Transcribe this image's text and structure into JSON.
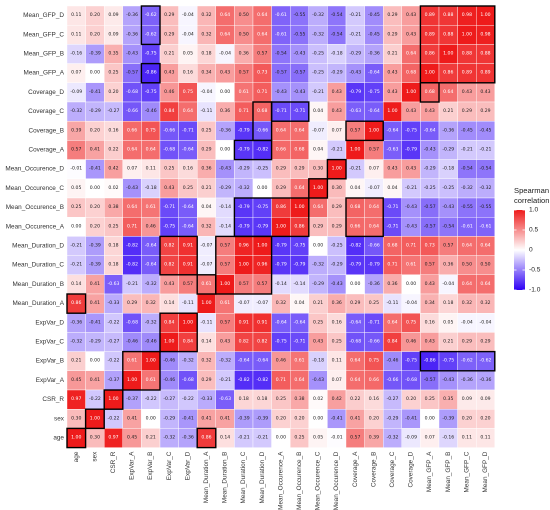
{
  "chart_data": {
    "type": "heatmap",
    "title": "",
    "xlabel": "",
    "ylabel": "",
    "variables": [
      "age",
      "sex",
      "CSR_R",
      "ExpVar_A",
      "ExpVar_B",
      "ExpVar_C",
      "ExpVar_D",
      "Mean_Duration_A",
      "Mean_Duration_B",
      "Mean_Duration_C",
      "Mean_Duration_D",
      "Mean_Occurence_A",
      "Mean_Occurence_B",
      "Mean_Occurence_C",
      "Mean_Occurence_D",
      "Coverage_A",
      "Coverage_B",
      "Coverage_C",
      "Coverage_D",
      "Mean_GFP_A",
      "Mean_GFP_B",
      "Mean_GFP_C",
      "Mean_GFP_D"
    ],
    "rows_top_to_bottom": [
      "Mean_GFP_D",
      "Mean_GFP_C",
      "Mean_GFP_B",
      "Mean_GFP_A",
      "Coverage_D",
      "Coverage_C",
      "Coverage_B",
      "Coverage_A",
      "Mean_Occurence_D",
      "Mean_Occurence_C",
      "Mean_Occurence_B",
      "Mean_Occurence_A",
      "Mean_Duration_D",
      "Mean_Duration_C",
      "Mean_Duration_B",
      "Mean_Duration_A",
      "ExpVar_D",
      "ExpVar_C",
      "ExpVar_B",
      "ExpVar_A",
      "CSR_R",
      "sex",
      "age"
    ],
    "columns_left_to_right": [
      "age",
      "sex",
      "CSR_R",
      "ExpVar_A",
      "ExpVar_B",
      "ExpVar_C",
      "ExpVar_D",
      "Mean_Duration_A",
      "Mean_Duration_B",
      "Mean_Duration_C",
      "Mean_Duration_D",
      "Mean_Occurence_A",
      "Mean_Occurence_B",
      "Mean_Occurence_C",
      "Mean_Occurence_D",
      "Coverage_A",
      "Coverage_B",
      "Coverage_C",
      "Coverage_D",
      "Mean_GFP_A",
      "Mean_GFP_B",
      "Mean_GFP_C",
      "Mean_GFP_D"
    ],
    "values": [
      [
        0.11,
        0.2,
        0.09,
        -0.36,
        -0.62,
        0.29,
        -0.04,
        0.32,
        0.64,
        0.5,
        0.64,
        -0.61,
        -0.55,
        -0.32,
        -0.54,
        -0.21,
        -0.45,
        0.29,
        0.43,
        0.89,
        0.88,
        0.98,
        1.0
      ],
      [
        0.11,
        0.2,
        0.09,
        -0.36,
        -0.62,
        0.29,
        -0.04,
        0.32,
        0.64,
        0.5,
        0.64,
        -0.61,
        -0.55,
        -0.32,
        -0.54,
        -0.21,
        -0.45,
        0.29,
        0.43,
        0.89,
        0.88,
        1.0,
        0.98
      ],
      [
        -0.16,
        -0.39,
        0.35,
        -0.43,
        -0.75,
        0.21,
        0.05,
        0.18,
        -0.04,
        0.36,
        0.57,
        -0.54,
        -0.43,
        -0.25,
        -0.18,
        -0.29,
        -0.36,
        0.21,
        0.64,
        0.86,
        1.0,
        0.88,
        0.88
      ],
      [
        0.07,
        0.0,
        0.25,
        -0.57,
        -0.86,
        0.43,
        0.16,
        0.34,
        0.43,
        0.57,
        0.73,
        -0.57,
        -0.57,
        -0.25,
        -0.29,
        -0.43,
        -0.64,
        0.43,
        0.68,
        1.0,
        0.86,
        0.89,
        0.89
      ],
      [
        -0.09,
        -0.41,
        0.2,
        -0.68,
        -0.75,
        0.46,
        0.75,
        -0.04,
        0.0,
        0.61,
        0.71,
        -0.43,
        -0.43,
        -0.21,
        0.43,
        -0.79,
        -0.75,
        0.43,
        1.0,
        0.68,
        0.64,
        0.43,
        0.43
      ],
      [
        -0.32,
        -0.29,
        -0.27,
        -0.66,
        -0.46,
        0.84,
        0.64,
        -0.11,
        0.36,
        0.71,
        0.68,
        -0.71,
        -0.71,
        0.04,
        0.43,
        -0.63,
        -0.64,
        1.0,
        0.43,
        0.43,
        0.21,
        0.29,
        0.29
      ],
      [
        0.39,
        0.2,
        0.16,
        0.66,
        0.75,
        -0.66,
        -0.71,
        0.25,
        -0.36,
        -0.79,
        -0.66,
        0.64,
        0.64,
        -0.07,
        0.07,
        0.57,
        1.0,
        -0.64,
        -0.75,
        -0.64,
        -0.36,
        -0.45,
        -0.45
      ],
      [
        0.57,
        0.41,
        0.22,
        0.64,
        0.64,
        -0.68,
        -0.64,
        0.29,
        0.0,
        -0.79,
        -0.82,
        0.66,
        0.68,
        0.04,
        -0.21,
        1.0,
        0.57,
        -0.63,
        -0.79,
        -0.43,
        -0.29,
        -0.21,
        -0.21
      ],
      [
        -0.01,
        -0.41,
        0.42,
        0.07,
        0.11,
        0.25,
        0.16,
        0.36,
        -0.43,
        -0.29,
        -0.25,
        0.29,
        0.29,
        0.3,
        1.0,
        -0.21,
        0.07,
        0.43,
        0.43,
        -0.29,
        -0.18,
        -0.54,
        -0.54
      ],
      [
        0.05,
        0.0,
        0.02,
        -0.43,
        -0.18,
        0.43,
        0.25,
        0.21,
        -0.29,
        -0.32,
        0.0,
        0.29,
        0.64,
        1.0,
        0.3,
        0.04,
        -0.07,
        0.04,
        -0.21,
        -0.25,
        -0.25,
        -0.32,
        -0.32
      ],
      [
        0.25,
        0.2,
        0.38,
        0.64,
        0.61,
        -0.71,
        -0.64,
        0.04,
        -0.14,
        -0.79,
        -0.75,
        0.86,
        1.0,
        0.64,
        0.29,
        0.68,
        0.64,
        -0.71,
        -0.43,
        -0.57,
        -0.43,
        -0.55,
        -0.55
      ],
      [
        0.0,
        0.2,
        0.25,
        0.71,
        0.46,
        -0.75,
        -0.64,
        0.32,
        -0.14,
        -0.79,
        -0.79,
        1.0,
        0.86,
        0.29,
        0.29,
        0.66,
        0.64,
        -0.71,
        -0.43,
        -0.57,
        -0.54,
        -0.61,
        -0.61
      ],
      [
        -0.21,
        -0.39,
        0.18,
        -0.82,
        -0.64,
        0.82,
        0.91,
        -0.07,
        0.57,
        0.96,
        1.0,
        -0.79,
        -0.75,
        0.0,
        -0.25,
        -0.82,
        -0.66,
        0.68,
        0.71,
        0.73,
        0.57,
        0.64,
        0.64
      ],
      [
        -0.21,
        -0.39,
        0.18,
        -0.82,
        -0.64,
        0.82,
        0.91,
        -0.07,
        0.57,
        1.0,
        0.96,
        -0.79,
        -0.79,
        -0.32,
        -0.29,
        -0.79,
        -0.79,
        0.71,
        0.61,
        0.57,
        0.36,
        0.5,
        0.5
      ],
      [
        0.14,
        0.41,
        -0.63,
        -0.21,
        -0.32,
        0.43,
        0.57,
        0.61,
        1.0,
        0.57,
        0.57,
        -0.14,
        -0.14,
        -0.29,
        -0.43,
        0.0,
        -0.36,
        0.36,
        0.0,
        0.43,
        -0.04,
        0.64,
        0.64
      ],
      [
        0.86,
        0.41,
        -0.33,
        0.29,
        0.32,
        0.14,
        -0.11,
        1.0,
        0.61,
        -0.07,
        -0.07,
        0.32,
        0.04,
        0.21,
        0.36,
        0.29,
        0.25,
        -0.11,
        -0.04,
        0.34,
        0.18,
        0.32,
        0.32
      ],
      [
        -0.36,
        -0.41,
        -0.22,
        -0.68,
        -0.32,
        0.84,
        1.0,
        -0.11,
        0.57,
        0.91,
        0.91,
        -0.64,
        -0.64,
        0.25,
        0.16,
        -0.64,
        -0.71,
        0.64,
        0.75,
        0.16,
        0.05,
        -0.04,
        -0.04
      ],
      [
        -0.32,
        -0.29,
        -0.27,
        -0.46,
        -0.46,
        1.0,
        0.84,
        0.14,
        0.43,
        0.82,
        0.82,
        -0.75,
        -0.71,
        0.43,
        0.25,
        -0.68,
        -0.66,
        0.84,
        0.46,
        0.43,
        0.21,
        0.29,
        0.29
      ],
      [
        0.21,
        0.0,
        -0.22,
        0.61,
        1.0,
        -0.46,
        -0.32,
        0.32,
        -0.32,
        -0.64,
        -0.64,
        0.46,
        0.61,
        -0.18,
        0.11,
        0.64,
        0.75,
        -0.46,
        -0.75,
        -0.86,
        -0.75,
        -0.62,
        -0.62
      ],
      [
        0.45,
        0.41,
        -0.37,
        1.0,
        0.61,
        -0.46,
        -0.68,
        0.29,
        -0.21,
        -0.82,
        -0.82,
        0.71,
        0.64,
        -0.43,
        0.07,
        0.64,
        0.66,
        -0.66,
        -0.68,
        -0.57,
        -0.43,
        -0.36,
        -0.36
      ],
      [
        0.97,
        -0.22,
        1.0,
        -0.37,
        -0.22,
        -0.27,
        -0.22,
        -0.33,
        -0.63,
        0.18,
        0.18,
        0.25,
        0.38,
        0.02,
        0.42,
        0.22,
        0.16,
        -0.27,
        0.2,
        0.25,
        0.35,
        0.09,
        0.09
      ],
      [
        0.3,
        1.0,
        -0.22,
        0.41,
        0.0,
        -0.29,
        -0.41,
        0.41,
        0.41,
        -0.39,
        -0.39,
        0.2,
        0.2,
        0.0,
        -0.41,
        0.41,
        0.2,
        -0.29,
        -0.41,
        0.0,
        -0.39,
        0.2,
        0.2
      ],
      [
        1.0,
        0.3,
        0.97,
        0.45,
        0.21,
        -0.32,
        -0.36,
        0.86,
        0.14,
        -0.21,
        -0.21,
        0.0,
        0.25,
        0.05,
        -0.01,
        0.57,
        0.39,
        -0.32,
        -0.09,
        0.07,
        -0.16,
        0.11,
        0.11
      ]
    ],
    "outlined_blocks": [
      {
        "rows": [
          "Mean_GFP_D",
          "Mean_GFP_A"
        ],
        "cols": [
          "Mean_GFP_A",
          "Mean_GFP_D"
        ]
      },
      {
        "rows": [
          "Mean_GFP_D",
          "Mean_GFP_C"
        ],
        "cols": [
          "ExpVar_B",
          "ExpVar_B"
        ]
      },
      {
        "rows": [
          "Mean_GFP_A",
          "Mean_GFP_A"
        ],
        "cols": [
          "ExpVar_B",
          "ExpVar_B"
        ]
      },
      {
        "rows": [
          "Coverage_D",
          "Coverage_D"
        ],
        "cols": [
          "Mean_GFP_A",
          "Mean_GFP_A"
        ]
      },
      {
        "rows": [
          "Coverage_C",
          "Coverage_B"
        ],
        "cols": [
          "Mean_Duration_D",
          "Mean_Duration_D"
        ]
      },
      {
        "rows": [
          "Coverage_C",
          "Coverage_C"
        ],
        "cols": [
          "Mean_Occurence_A",
          "Mean_Occurence_B"
        ]
      },
      {
        "rows": [
          "Coverage_B",
          "Coverage_B"
        ],
        "cols": [
          "Coverage_A",
          "Coverage_B"
        ]
      },
      {
        "rows": [
          "Coverage_A",
          "Coverage_A"
        ],
        "cols": [
          "Mean_Duration_C",
          "Mean_Duration_D"
        ]
      },
      {
        "rows": [
          "Mean_Occurence_D",
          "Mean_Occurence_D"
        ],
        "cols": [
          "Mean_Occurence_D",
          "Mean_Occurence_D"
        ]
      },
      {
        "rows": [
          "Mean_Occurence_C",
          "Mean_Occurence_C"
        ],
        "cols": [
          "Mean_Occurence_C",
          "Mean_Occurence_C"
        ]
      },
      {
        "rows": [
          "Mean_Occurence_B",
          "Mean_Occurence_A"
        ],
        "cols": [
          "Mean_Duration_C",
          "Mean_Occurence_B"
        ]
      },
      {
        "rows": [
          "Mean_Occurence_B",
          "Mean_Occurence_A"
        ],
        "cols": [
          "Coverage_A",
          "Coverage_B"
        ]
      },
      {
        "rows": [
          "Mean_Duration_D",
          "Mean_Duration_C"
        ],
        "cols": [
          "ExpVar_C",
          "ExpVar_D"
        ]
      },
      {
        "rows": [
          "Mean_Duration_D",
          "Mean_Duration_B"
        ],
        "cols": [
          "Mean_Duration_B",
          "Mean_Duration_D"
        ]
      },
      {
        "rows": [
          "Mean_Duration_B",
          "Mean_Duration_B"
        ],
        "cols": [
          "Mean_Duration_A",
          "Mean_Duration_A"
        ]
      },
      {
        "rows": [
          "Mean_Duration_A",
          "Mean_Duration_A"
        ],
        "cols": [
          "age",
          "age"
        ]
      },
      {
        "rows": [
          "ExpVar_D",
          "ExpVar_C"
        ],
        "cols": [
          "ExpVar_C",
          "ExpVar_D"
        ]
      },
      {
        "rows": [
          "ExpVar_B",
          "ExpVar_A"
        ],
        "cols": [
          "ExpVar_A",
          "ExpVar_B"
        ]
      },
      {
        "rows": [
          "ExpVar_B",
          "ExpVar_B"
        ],
        "cols": [
          "Mean_GFP_A",
          "Mean_GFP_D"
        ]
      },
      {
        "rows": [
          "CSR_R",
          "CSR_R"
        ],
        "cols": [
          "CSR_R",
          "CSR_R"
        ]
      },
      {
        "rows": [
          "sex",
          "sex"
        ],
        "cols": [
          "sex",
          "sex"
        ]
      },
      {
        "rows": [
          "age",
          "age"
        ],
        "cols": [
          "age",
          "age"
        ]
      },
      {
        "rows": [
          "age",
          "age"
        ],
        "cols": [
          "Mean_Duration_A",
          "Mean_Duration_A"
        ]
      }
    ],
    "legend": {
      "title_line1": "Spearman",
      "title_line2": "correlation",
      "ticks": [
        "1.0",
        "0.5",
        "0",
        "-0.5",
        "-1.0"
      ],
      "tick_values": [
        1.0,
        0.5,
        0,
        -0.5,
        -1.0
      ],
      "colors": {
        "high": "#ee1b1b",
        "mid": "#ffffff",
        "low": "#2e00f5"
      },
      "placement": "right"
    },
    "zlim": [
      -1,
      1
    ],
    "grid": true
  }
}
